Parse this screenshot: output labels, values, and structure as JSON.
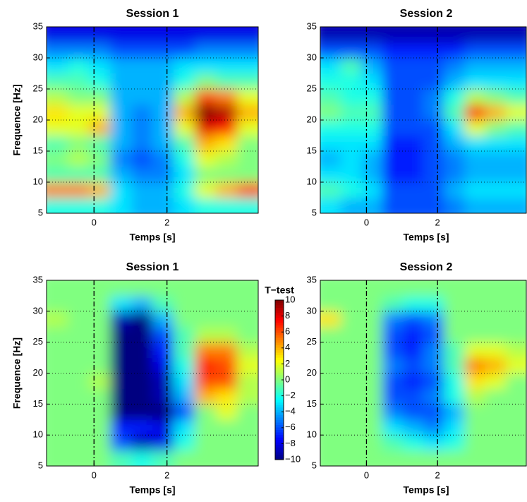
{
  "chart_data": [
    {
      "type": "heatmap",
      "title": "Session 1",
      "xlabel": "Temps [s]",
      "ylabel": "Frequence [Hz]",
      "x": [
        -1.01,
        -0.43,
        0.15,
        0.73,
        1.31,
        1.89,
        2.47,
        3.05,
        3.63,
        4.21
      ],
      "y": [
        6.25,
        8.75,
        11.25,
        13.75,
        16.25,
        18.75,
        21.25,
        23.75,
        26.25,
        28.75,
        31.25,
        33.75
      ],
      "values": [
        [
          0.4,
          0.4,
          0.4,
          0.35,
          0.3,
          0.3,
          0.35,
          0.4,
          0.4,
          0.4
        ],
        [
          0.75,
          0.75,
          0.7,
          0.35,
          0.3,
          0.3,
          0.4,
          0.6,
          0.7,
          0.8
        ],
        [
          0.45,
          0.45,
          0.45,
          0.3,
          0.25,
          0.25,
          0.35,
          0.5,
          0.5,
          0.5
        ],
        [
          0.5,
          0.55,
          0.5,
          0.25,
          0.2,
          0.25,
          0.4,
          0.6,
          0.55,
          0.5
        ],
        [
          0.45,
          0.5,
          0.45,
          0.3,
          0.25,
          0.3,
          0.45,
          0.7,
          0.65,
          0.5
        ],
        [
          0.6,
          0.6,
          0.7,
          0.3,
          0.25,
          0.3,
          0.6,
          0.9,
          0.85,
          0.6
        ],
        [
          0.65,
          0.6,
          0.6,
          0.3,
          0.25,
          0.3,
          0.7,
          1.0,
          0.95,
          0.7
        ],
        [
          0.55,
          0.5,
          0.5,
          0.3,
          0.3,
          0.3,
          0.55,
          0.8,
          0.75,
          0.6
        ],
        [
          0.45,
          0.45,
          0.4,
          0.3,
          0.3,
          0.3,
          0.4,
          0.5,
          0.45,
          0.45
        ],
        [
          0.35,
          0.4,
          0.35,
          0.3,
          0.3,
          0.3,
          0.35,
          0.35,
          0.35,
          0.35
        ],
        [
          0.25,
          0.25,
          0.25,
          0.2,
          0.2,
          0.2,
          0.2,
          0.25,
          0.25,
          0.25
        ],
        [
          0.1,
          0.1,
          0.1,
          0.1,
          0.1,
          0.1,
          0.1,
          0.1,
          0.1,
          0.1
        ]
      ],
      "clim": [
        0,
        1
      ],
      "xlim": [
        -1.3,
        4.5
      ],
      "ylim": [
        5,
        35
      ],
      "xticks": [
        0,
        2
      ],
      "yticks": [
        5,
        10,
        15,
        20,
        25,
        30,
        35
      ],
      "vlines": [
        0,
        2
      ],
      "grid": true
    },
    {
      "type": "heatmap",
      "title": "Session 2",
      "xlabel": "Temps [s]",
      "x": [
        -1.01,
        -0.43,
        0.15,
        0.73,
        1.31,
        1.89,
        2.47,
        3.05,
        3.63,
        4.21
      ],
      "y": [
        6.25,
        8.75,
        11.25,
        13.75,
        16.25,
        18.75,
        21.25,
        23.75,
        26.25,
        28.75,
        31.25,
        33.75
      ],
      "values": [
        [
          0.35,
          0.3,
          0.3,
          0.2,
          0.2,
          0.2,
          0.25,
          0.3,
          0.3,
          0.3
        ],
        [
          0.45,
          0.4,
          0.35,
          0.2,
          0.2,
          0.2,
          0.3,
          0.35,
          0.35,
          0.35
        ],
        [
          0.35,
          0.35,
          0.3,
          0.15,
          0.15,
          0.2,
          0.25,
          0.3,
          0.3,
          0.3
        ],
        [
          0.3,
          0.35,
          0.3,
          0.15,
          0.15,
          0.2,
          0.25,
          0.3,
          0.3,
          0.3
        ],
        [
          0.35,
          0.35,
          0.35,
          0.15,
          0.15,
          0.2,
          0.3,
          0.35,
          0.35,
          0.35
        ],
        [
          0.4,
          0.4,
          0.4,
          0.2,
          0.2,
          0.2,
          0.35,
          0.6,
          0.5,
          0.45
        ],
        [
          0.5,
          0.45,
          0.45,
          0.2,
          0.2,
          0.25,
          0.45,
          0.85,
          0.7,
          0.6
        ],
        [
          0.45,
          0.4,
          0.4,
          0.2,
          0.2,
          0.25,
          0.4,
          0.55,
          0.5,
          0.45
        ],
        [
          0.4,
          0.4,
          0.35,
          0.2,
          0.2,
          0.2,
          0.3,
          0.35,
          0.35,
          0.35
        ],
        [
          0.35,
          0.45,
          0.3,
          0.2,
          0.2,
          0.2,
          0.25,
          0.3,
          0.3,
          0.3
        ],
        [
          0.2,
          0.2,
          0.2,
          0.15,
          0.15,
          0.15,
          0.15,
          0.2,
          0.2,
          0.2
        ],
        [
          0.05,
          0.05,
          0.05,
          0.05,
          0.05,
          0.05,
          0.05,
          0.05,
          0.05,
          0.05
        ]
      ],
      "clim": [
        0,
        1
      ],
      "xlim": [
        -1.3,
        4.5
      ],
      "ylim": [
        5,
        35
      ],
      "xticks": [
        0,
        2
      ],
      "yticks": [
        5,
        10,
        15,
        20,
        25,
        30,
        35
      ],
      "vlines": [
        0,
        2
      ],
      "grid": true
    },
    {
      "type": "heatmap",
      "title": "Session 1",
      "xlabel": "Temps [s]",
      "ylabel": "Frequence [Hz]",
      "x": [
        -1.01,
        -0.43,
        0.15,
        0.73,
        1.31,
        1.89,
        2.47,
        3.05,
        3.63,
        4.21
      ],
      "y": [
        6.25,
        8.75,
        11.25,
        13.75,
        16.25,
        18.75,
        21.25,
        23.75,
        26.25,
        28.75,
        31.25,
        33.75
      ],
      "values": [
        [
          0,
          0,
          0,
          -1,
          -2,
          -1,
          0,
          0,
          0,
          0
        ],
        [
          0,
          0,
          0,
          -6,
          -9,
          -8,
          -2,
          0,
          0,
          0
        ],
        [
          0,
          0,
          0,
          -7,
          -7,
          -8,
          -3,
          0,
          0,
          0
        ],
        [
          0,
          0,
          0,
          -10,
          -10,
          -10,
          -6,
          0,
          2,
          0
        ],
        [
          0,
          0,
          0,
          -10,
          -10,
          -9,
          -4,
          4,
          3,
          1
        ],
        [
          0,
          0,
          1,
          -10,
          -10,
          -9,
          -3,
          6,
          6,
          1
        ],
        [
          0,
          0,
          0,
          -10,
          -10,
          -8,
          -2,
          7,
          6,
          2
        ],
        [
          0,
          0,
          0,
          -10,
          -10,
          -7,
          -1,
          5,
          5,
          1
        ],
        [
          0,
          0,
          0,
          -10,
          -10,
          -6,
          -1,
          1,
          1,
          0
        ],
        [
          1,
          0,
          0,
          -9,
          -10,
          -4,
          0,
          0,
          0,
          0
        ],
        [
          0,
          0,
          0,
          -3,
          -4,
          -1,
          0,
          0,
          0,
          0
        ],
        [
          0,
          0,
          0,
          0,
          0,
          0,
          0,
          0,
          0,
          0
        ]
      ],
      "clim": [
        -10,
        10
      ],
      "colorbar_label": "T−test",
      "colorbar_ticks": [
        {
          "value": -10,
          "label": "−10"
        },
        {
          "value": -8,
          "label": "−8"
        },
        {
          "value": -6,
          "label": "−6"
        },
        {
          "value": -4,
          "label": "−4"
        },
        {
          "value": -2,
          "label": "−2"
        },
        0,
        2,
        4,
        6,
        8,
        10
      ],
      "xlim": [
        -1.3,
        4.5
      ],
      "ylim": [
        5,
        35
      ],
      "xticks": [
        0,
        2
      ],
      "yticks": [
        5,
        10,
        15,
        20,
        25,
        30,
        35
      ],
      "vlines": [
        0,
        2
      ],
      "grid": true
    },
    {
      "type": "heatmap",
      "title": "Session 2",
      "xlabel": "Temps [s]",
      "x": [
        -1.01,
        -0.43,
        0.15,
        0.73,
        1.31,
        1.89,
        2.47,
        3.05,
        3.63,
        4.21
      ],
      "y": [
        6.25,
        8.75,
        11.25,
        13.75,
        16.25,
        18.75,
        21.25,
        23.75,
        26.25,
        28.75,
        31.25,
        33.75
      ],
      "values": [
        [
          0,
          0,
          0,
          0,
          0,
          0,
          0,
          0,
          0,
          0
        ],
        [
          0,
          0,
          0,
          -1,
          -2,
          -3,
          -2,
          0,
          0,
          0
        ],
        [
          0,
          0,
          0,
          -3,
          -4,
          -5,
          -3,
          0,
          0,
          0
        ],
        [
          0,
          0,
          0,
          -5,
          -6,
          -6,
          -4,
          0,
          0,
          0
        ],
        [
          0,
          0,
          0,
          -6,
          -6,
          -5,
          -2,
          1,
          0,
          0
        ],
        [
          0,
          0,
          0,
          -6,
          -7,
          -6,
          -2,
          3,
          2,
          0
        ],
        [
          0,
          0,
          0,
          -5,
          -6,
          -5,
          -1,
          5,
          4,
          2
        ],
        [
          0,
          0,
          0,
          -6,
          -7,
          -5,
          -1,
          2,
          2,
          1
        ],
        [
          0,
          0,
          0,
          -6,
          -7,
          -6,
          0,
          0,
          0,
          0
        ],
        [
          3,
          0,
          0,
          -5,
          -6,
          -5,
          0,
          0,
          0,
          0
        ],
        [
          0,
          0,
          0,
          -1,
          -2,
          -2,
          0,
          0,
          0,
          0
        ],
        [
          0,
          0,
          0,
          0,
          0,
          0,
          0,
          0,
          0,
          0
        ]
      ],
      "clim": [
        -10,
        10
      ],
      "xlim": [
        -1.3,
        4.5
      ],
      "ylim": [
        5,
        35
      ],
      "xticks": [
        0,
        2
      ],
      "yticks": [
        5,
        10,
        15,
        20,
        25,
        30,
        35
      ],
      "vlines": [
        0,
        2
      ],
      "grid": true
    }
  ]
}
